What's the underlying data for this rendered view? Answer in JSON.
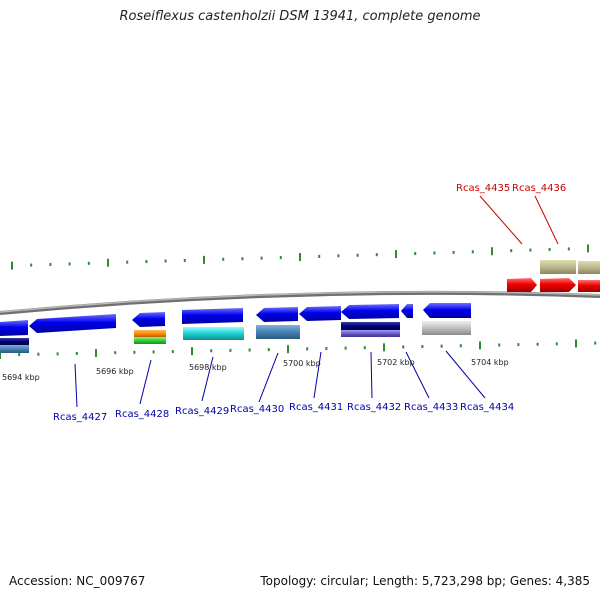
{
  "title": "Roseiflexus castenholzii DSM 13941, complete genome",
  "footer": {
    "accession": "Accession: NC_009767",
    "summary": "Topology: circular; Length: 5,723,298 bp; Genes: 4,385"
  },
  "colors": {
    "backbone": "#8c8c8c",
    "tick": "#2e8b2e",
    "forward_label": "#0000aa",
    "reverse_label": "#cc0000"
  },
  "scale": {
    "unit": "kbp",
    "labels": [
      "5694 kbp",
      "5696 kbp",
      "5698 kbp",
      "5700 kbp",
      "5702 kbp",
      "5704 kbp"
    ]
  },
  "genes_lower": [
    {
      "name": "Rcas_4427",
      "color": "#0000ee"
    },
    {
      "name": "Rcas_4428",
      "color": "#0000ee"
    },
    {
      "name": "Rcas_4429",
      "color": "#0000ee"
    },
    {
      "name": "Rcas_4430",
      "color": "#0000ee"
    },
    {
      "name": "Rcas_4431",
      "color": "#0000ee"
    },
    {
      "name": "Rcas_4432",
      "color": "#0000ee"
    },
    {
      "name": "Rcas_4433",
      "color": "#0000ee"
    },
    {
      "name": "Rcas_4434",
      "color": "#0000ee"
    }
  ],
  "genes_upper": [
    {
      "name": "Rcas_4435",
      "color": "#ee0000"
    },
    {
      "name": "Rcas_4436",
      "color": "#ee0000"
    }
  ],
  "annotation_colors": {
    "navy": "#000080",
    "steelblue": "#4682b4",
    "orange": "#ff8c00",
    "green": "#32cd32",
    "cyan": "#20d0d0",
    "slate": "#6a5acd",
    "silver": "#c0c0c0",
    "khaki": "#bdb76b"
  }
}
